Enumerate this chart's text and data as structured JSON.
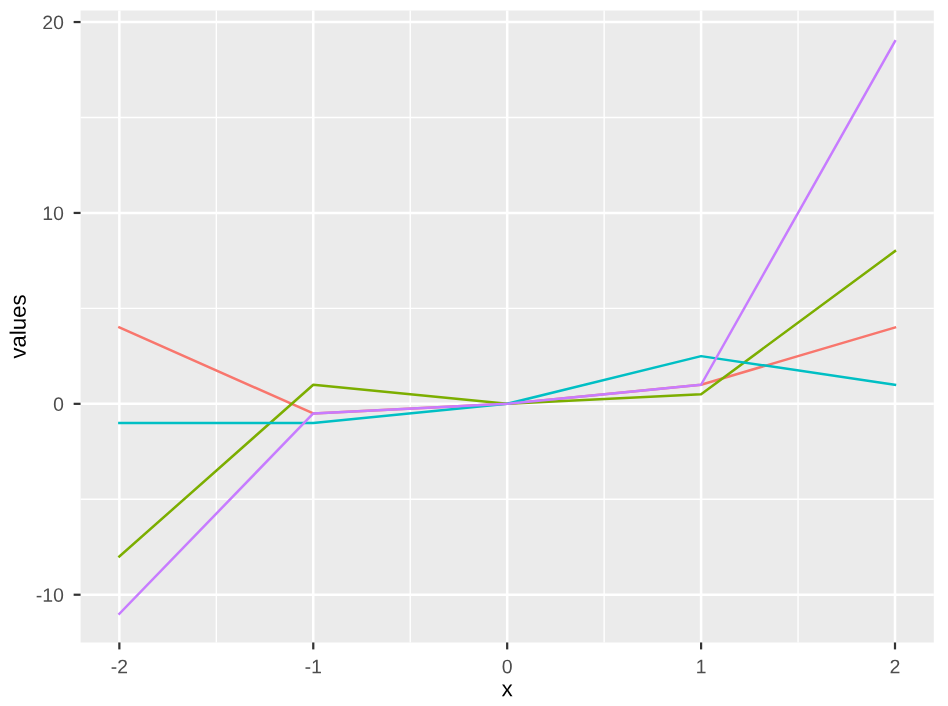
{
  "chart_data": {
    "type": "line",
    "xlabel": "x",
    "ylabel": "values",
    "x": [
      -2,
      -1,
      0,
      1,
      2
    ],
    "series": [
      {
        "color": "#f8766d",
        "values": [
          4,
          -0.5,
          0,
          1,
          4
        ]
      },
      {
        "color": "#7cae00",
        "values": [
          -8,
          1,
          0,
          0.5,
          8
        ]
      },
      {
        "color": "#00bfc4",
        "values": [
          -1,
          -1,
          0,
          2.5,
          1
        ]
      },
      {
        "color": "#c77cff",
        "values": [
          -11,
          -0.5,
          0,
          1,
          19
        ]
      }
    ],
    "xlim": [
      -2.2,
      2.2
    ],
    "ylim": [
      -12.5,
      20.6
    ],
    "xticks": [
      -2,
      -1,
      0,
      1,
      2
    ],
    "yticks": [
      -10,
      0,
      10,
      20
    ],
    "grid": true,
    "legend": false
  }
}
